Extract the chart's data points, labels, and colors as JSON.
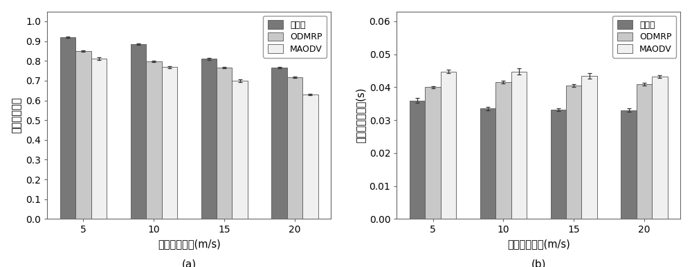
{
  "categories": [
    5,
    10,
    15,
    20
  ],
  "chart_a": {
    "title": "(a)",
    "ylabel": "平均包投递率",
    "xlabel": "最大移动速度(m/s)",
    "ylim": [
      0.0,
      1.05
    ],
    "yticks": [
      0.0,
      0.1,
      0.2,
      0.3,
      0.4,
      0.5,
      0.6,
      0.7,
      0.8,
      0.9,
      1.0
    ],
    "series": {
      "本方法": {
        "values": [
          0.92,
          0.885,
          0.81,
          0.765
        ],
        "errors": [
          0.004,
          0.004,
          0.004,
          0.004
        ]
      },
      "ODMRP": {
        "values": [
          0.85,
          0.798,
          0.765,
          0.716
        ],
        "errors": [
          0.005,
          0.004,
          0.004,
          0.004
        ]
      },
      "MAODV": {
        "values": [
          0.812,
          0.768,
          0.7,
          0.63
        ],
        "errors": [
          0.008,
          0.006,
          0.006,
          0.005
        ]
      }
    }
  },
  "chart_b": {
    "title": "(b)",
    "ylabel": "平均端到端时延(s)",
    "xlabel": "最大移动速度(m/s)",
    "ylim": [
      0.0,
      0.063
    ],
    "yticks": [
      0.0,
      0.01,
      0.02,
      0.03,
      0.04,
      0.05,
      0.06
    ],
    "series": {
      "本方法": {
        "values": [
          0.036,
          0.0335,
          0.0332,
          0.033
        ],
        "errors": [
          0.0008,
          0.0005,
          0.0005,
          0.0005
        ]
      },
      "ODMRP": {
        "values": [
          0.04,
          0.0415,
          0.0405,
          0.041
        ],
        "errors": [
          0.0004,
          0.0004,
          0.0004,
          0.0004
        ]
      },
      "MAODV": {
        "values": [
          0.0448,
          0.0448,
          0.0435,
          0.0432
        ],
        "errors": [
          0.0005,
          0.001,
          0.0008,
          0.0004
        ]
      }
    }
  },
  "colors": {
    "本方法": "#787878",
    "ODMRP": "#c8c8c8",
    "MAODV": "#f0f0f0"
  },
  "bar_width": 0.22,
  "legend_order": [
    "本方法",
    "ODMRP",
    "MAODV"
  ],
  "edgecolor": "#555555",
  "errorbar_color": "#333333"
}
